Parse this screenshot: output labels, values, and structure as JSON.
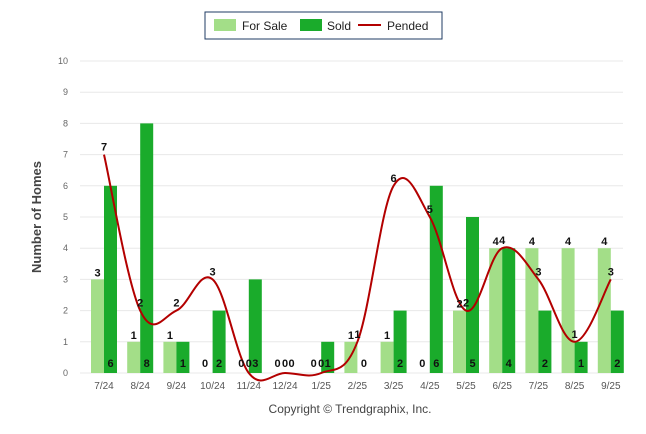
{
  "chart_data": {
    "type": "bar",
    "categories": [
      "7/24",
      "8/24",
      "9/24",
      "10/24",
      "11/24",
      "12/24",
      "1/25",
      "2/25",
      "3/25",
      "4/25",
      "5/25",
      "6/25",
      "7/25",
      "8/25",
      "9/25"
    ],
    "series": [
      {
        "name": "For Sale",
        "kind": "bar",
        "color": "#a3de88",
        "values": [
          3,
          1,
          1,
          0,
          0,
          0,
          0,
          1,
          1,
          0,
          2,
          4,
          4,
          4,
          4
        ]
      },
      {
        "name": "Sold",
        "kind": "bar",
        "color": "#1aab2b",
        "values": [
          6,
          8,
          1,
          2,
          3,
          0,
          1,
          0,
          2,
          6,
          5,
          4,
          2,
          1,
          2
        ]
      },
      {
        "name": "Pended",
        "kind": "line",
        "color": "#b30000",
        "values": [
          7,
          2,
          2,
          3,
          0,
          0,
          0,
          1,
          6,
          5,
          2,
          4,
          3,
          1,
          3
        ]
      }
    ],
    "ylabel": "Number of Homes",
    "yticks": [
      "0",
      "1",
      "2",
      "3",
      "4",
      "5",
      "6",
      "7",
      "8",
      "9",
      "10"
    ],
    "ylim": [
      0,
      10
    ],
    "grid": true,
    "legend": "top-center"
  },
  "footer": {
    "copyright": "Copyright © Trendgraphix, Inc."
  }
}
